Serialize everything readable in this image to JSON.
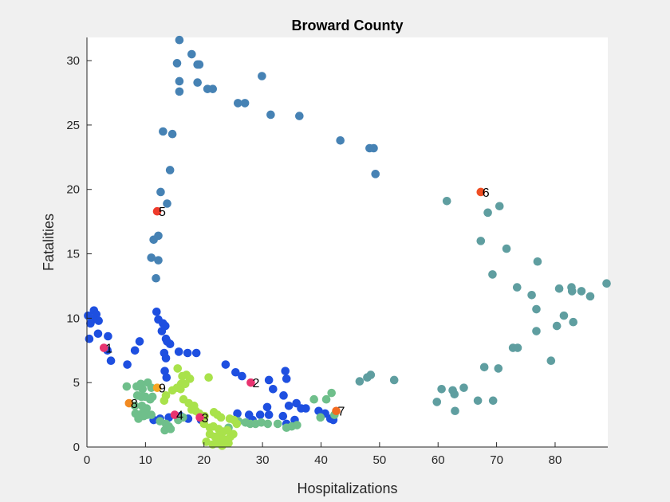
{
  "chart_data": {
    "type": "scatter",
    "title": "Broward County",
    "xlabel": "Hospitalizations",
    "ylabel": "Fatalities",
    "xlim": [
      0,
      89
    ],
    "ylim": [
      0,
      31.8
    ],
    "xticks": [
      0,
      10,
      20,
      30,
      40,
      50,
      60,
      70,
      80
    ],
    "yticks": [
      0,
      5,
      10,
      15,
      20,
      25,
      30
    ],
    "grid": false,
    "legend": "none",
    "series": [
      {
        "color": "#4682b4",
        "points": [
          [
            15.8,
            31.6
          ],
          [
            17.9,
            30.5
          ],
          [
            15.4,
            29.8
          ],
          [
            19.2,
            29.7
          ],
          [
            18.9,
            29.7
          ],
          [
            29.9,
            28.8
          ],
          [
            15.8,
            28.4
          ],
          [
            18.9,
            28.3
          ],
          [
            20.6,
            27.8
          ],
          [
            21.5,
            27.8
          ],
          [
            15.8,
            27.6
          ],
          [
            25.8,
            26.7
          ],
          [
            27.0,
            26.7
          ],
          [
            31.4,
            25.8
          ],
          [
            36.3,
            25.7
          ],
          [
            13.0,
            24.5
          ],
          [
            14.6,
            24.3
          ],
          [
            43.3,
            23.8
          ],
          [
            48.3,
            23.2
          ],
          [
            49.0,
            23.2
          ],
          [
            14.2,
            21.5
          ],
          [
            49.3,
            21.2
          ],
          [
            12.6,
            19.8
          ],
          [
            13.7,
            18.9
          ],
          [
            11.4,
            16.1
          ],
          [
            12.2,
            16.4
          ],
          [
            11.0,
            14.7
          ],
          [
            12.2,
            14.5
          ],
          [
            11.8,
            13.1
          ]
        ]
      },
      {
        "color": "#5f9ea0",
        "points": [
          [
            61.5,
            19.1
          ],
          [
            70.5,
            18.7
          ],
          [
            68.5,
            18.2
          ],
          [
            67.3,
            16.0
          ],
          [
            71.7,
            15.4
          ],
          [
            77.0,
            14.4
          ],
          [
            69.3,
            13.4
          ],
          [
            73.5,
            12.4
          ],
          [
            76.0,
            11.8
          ],
          [
            80.7,
            12.3
          ],
          [
            82.8,
            12.4
          ],
          [
            82.9,
            12.1
          ],
          [
            84.5,
            12.1
          ],
          [
            86.0,
            11.7
          ],
          [
            88.8,
            12.7
          ],
          [
            76.8,
            10.7
          ],
          [
            81.5,
            10.2
          ],
          [
            80.3,
            9.4
          ],
          [
            83.1,
            9.7
          ],
          [
            76.8,
            9.0
          ],
          [
            72.8,
            7.7
          ],
          [
            73.6,
            7.7
          ],
          [
            79.3,
            6.7
          ],
          [
            67.9,
            6.2
          ],
          [
            70.3,
            6.1
          ],
          [
            52.5,
            5.2
          ],
          [
            48.5,
            5.6
          ],
          [
            47.9,
            5.4
          ],
          [
            46.6,
            5.1
          ],
          [
            60.6,
            4.5
          ],
          [
            62.5,
            4.4
          ],
          [
            64.4,
            4.6
          ],
          [
            62.8,
            4.1
          ],
          [
            59.8,
            3.5
          ],
          [
            66.8,
            3.6
          ],
          [
            69.4,
            3.6
          ],
          [
            62.9,
            2.8
          ]
        ]
      },
      {
        "color": "#1e4fe0",
        "points": [
          [
            0.2,
            10.2
          ],
          [
            1.2,
            10.6
          ],
          [
            1.6,
            10.3
          ],
          [
            2.0,
            9.8
          ],
          [
            1.0,
            9.9
          ],
          [
            0.6,
            9.6
          ],
          [
            1.9,
            8.8
          ],
          [
            3.6,
            8.6
          ],
          [
            0.4,
            8.4
          ],
          [
            9.0,
            8.2
          ],
          [
            3.5,
            7.5
          ],
          [
            8.2,
            7.5
          ],
          [
            4.1,
            6.7
          ],
          [
            6.9,
            6.4
          ],
          [
            11.9,
            10.5
          ],
          [
            12.2,
            9.9
          ],
          [
            13.0,
            9.6
          ],
          [
            13.4,
            9.4
          ],
          [
            12.8,
            9.0
          ],
          [
            13.5,
            8.4
          ],
          [
            13.7,
            8.2
          ],
          [
            14.2,
            8.0
          ],
          [
            13.2,
            7.3
          ],
          [
            15.7,
            7.4
          ],
          [
            17.2,
            7.3
          ],
          [
            18.7,
            7.3
          ],
          [
            13.5,
            6.9
          ],
          [
            13.3,
            5.9
          ],
          [
            13.6,
            5.4
          ],
          [
            23.7,
            6.4
          ],
          [
            25.4,
            5.8
          ],
          [
            26.5,
            5.5
          ],
          [
            33.9,
            5.9
          ],
          [
            34.1,
            5.3
          ],
          [
            31.1,
            5.2
          ],
          [
            31.8,
            4.5
          ],
          [
            33.6,
            4.0
          ],
          [
            34.5,
            3.2
          ],
          [
            35.8,
            3.4
          ],
          [
            36.6,
            3.0
          ],
          [
            37.4,
            3.0
          ],
          [
            33.5,
            2.4
          ],
          [
            35.5,
            2.1
          ],
          [
            34.1,
            1.8
          ],
          [
            30.8,
            3.1
          ],
          [
            27.7,
            2.5
          ],
          [
            29.6,
            2.5
          ],
          [
            31.1,
            2.5
          ],
          [
            28.3,
            2.1
          ],
          [
            25.7,
            2.6
          ],
          [
            39.6,
            2.8
          ],
          [
            40.7,
            2.6
          ],
          [
            41.6,
            2.2
          ],
          [
            42.1,
            2.1
          ],
          [
            12.5,
            2.2
          ],
          [
            14.0,
            2.3
          ],
          [
            11.4,
            2.1
          ],
          [
            16.0,
            2.4
          ],
          [
            17.3,
            2.2
          ],
          [
            19.5,
            2.1
          ]
        ]
      },
      {
        "color": "#6fbf8b",
        "points": [
          [
            6.8,
            4.7
          ],
          [
            8.5,
            4.7
          ],
          [
            9.2,
            4.9
          ],
          [
            10.4,
            5.0
          ],
          [
            11.0,
            4.6
          ],
          [
            9.5,
            4.5
          ],
          [
            8.6,
            4.0
          ],
          [
            9.3,
            3.9
          ],
          [
            10.0,
            3.9
          ],
          [
            10.8,
            3.7
          ],
          [
            11.2,
            3.9
          ],
          [
            8.2,
            3.2
          ],
          [
            9.4,
            3.2
          ],
          [
            10.2,
            3.0
          ],
          [
            8.3,
            2.6
          ],
          [
            9.4,
            2.6
          ],
          [
            10.3,
            2.5
          ],
          [
            8.8,
            2.2
          ],
          [
            9.7,
            2.4
          ],
          [
            11.0,
            2.5
          ],
          [
            12.5,
            2.0
          ],
          [
            13.5,
            1.8
          ],
          [
            14.0,
            1.6
          ],
          [
            13.3,
            1.3
          ],
          [
            14.3,
            1.4
          ],
          [
            15.6,
            2.1
          ],
          [
            16.4,
            2.3
          ],
          [
            24.2,
            1.5
          ],
          [
            25.9,
            2.0
          ],
          [
            27.1,
            1.9
          ],
          [
            27.9,
            1.8
          ],
          [
            28.8,
            1.8
          ],
          [
            29.8,
            1.9
          ],
          [
            30.9,
            1.8
          ],
          [
            32.6,
            1.8
          ],
          [
            34.1,
            1.5
          ],
          [
            35.0,
            1.6
          ],
          [
            35.9,
            1.7
          ],
          [
            38.8,
            3.7
          ],
          [
            40.9,
            3.7
          ],
          [
            41.8,
            4.2
          ],
          [
            39.9,
            2.3
          ],
          [
            42.3,
            2.5
          ]
        ]
      },
      {
        "color": "#a9e24b",
        "points": [
          [
            15.5,
            6.1
          ],
          [
            16.3,
            5.5
          ],
          [
            17.0,
            5.6
          ],
          [
            17.6,
            5.3
          ],
          [
            16.1,
            4.9
          ],
          [
            16.8,
            4.9
          ],
          [
            16.0,
            4.5
          ],
          [
            13.5,
            4.0
          ],
          [
            14.6,
            4.4
          ],
          [
            15.4,
            4.6
          ],
          [
            13.2,
            3.6
          ],
          [
            16.5,
            3.7
          ],
          [
            17.4,
            3.4
          ],
          [
            18.3,
            3.2
          ],
          [
            17.9,
            2.9
          ],
          [
            18.6,
            2.8
          ],
          [
            19.2,
            2.6
          ],
          [
            20.1,
            2.4
          ],
          [
            21.7,
            2.7
          ],
          [
            22.3,
            2.5
          ],
          [
            22.9,
            2.3
          ],
          [
            24.4,
            2.2
          ],
          [
            25.1,
            2.1
          ],
          [
            20.0,
            1.8
          ],
          [
            21.0,
            1.5
          ],
          [
            21.6,
            1.6
          ],
          [
            22.5,
            1.4
          ],
          [
            23.3,
            1.2
          ],
          [
            24.0,
            1.3
          ],
          [
            21.0,
            1.0
          ],
          [
            21.9,
            0.8
          ],
          [
            22.6,
            0.9
          ],
          [
            23.4,
            0.6
          ],
          [
            24.5,
            0.8
          ],
          [
            20.4,
            0.4
          ],
          [
            21.5,
            0.2
          ],
          [
            22.4,
            0.3
          ],
          [
            23.1,
            0.1
          ],
          [
            24.2,
            0.3
          ],
          [
            25.0,
            1.0
          ],
          [
            25.6,
            1.8
          ],
          [
            20.8,
            5.4
          ]
        ]
      }
    ],
    "highlights": [
      {
        "x": 2.9,
        "y": 7.7,
        "color": "#e8336f",
        "label": "1"
      },
      {
        "x": 28.0,
        "y": 5.0,
        "color": "#e8336f",
        "label": "2"
      },
      {
        "x": 19.3,
        "y": 2.3,
        "color": "#e8336f",
        "label": "3"
      },
      {
        "x": 15.0,
        "y": 2.5,
        "color": "#e8336f",
        "label": "4"
      },
      {
        "x": 12.0,
        "y": 18.3,
        "color": "#ef3b2c",
        "label": "5"
      },
      {
        "x": 67.3,
        "y": 19.8,
        "color": "#ef4e23",
        "label": "6"
      },
      {
        "x": 42.6,
        "y": 2.8,
        "color": "#f26b21",
        "label": "7"
      },
      {
        "x": 7.2,
        "y": 3.4,
        "color": "#f28a21",
        "label": "8"
      },
      {
        "x": 12.0,
        "y": 4.6,
        "color": "#f6a623",
        "label": "9"
      }
    ]
  }
}
